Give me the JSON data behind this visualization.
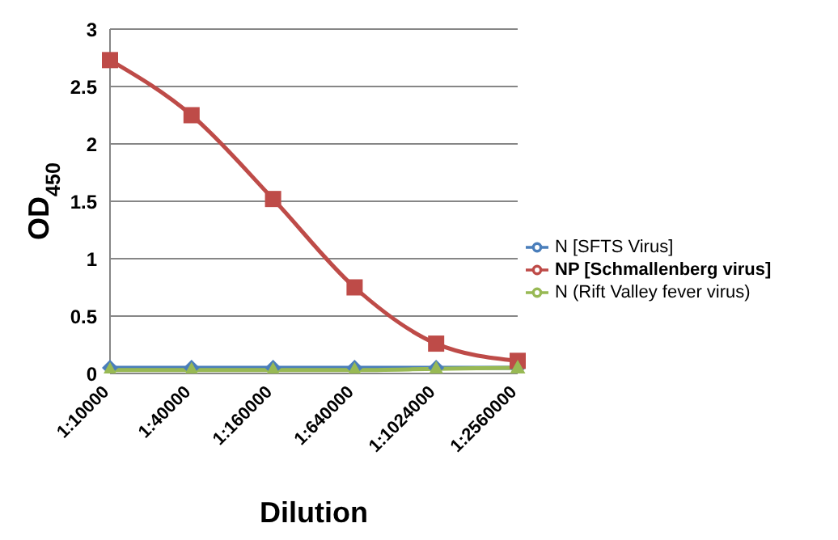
{
  "chart_data": {
    "type": "line",
    "xlabel": "Dilution",
    "ylabel": "OD$_{450}$",
    "categories": [
      "1:10000",
      "1:40000",
      "1:160000",
      "1:640000",
      "1:1024000",
      "1:2560000"
    ],
    "series": [
      {
        "name": "N [SFTS Virus]",
        "color": "#4a7ebb",
        "marker": "diamond",
        "values": [
          0.05,
          0.05,
          0.05,
          0.05,
          0.05,
          0.05
        ]
      },
      {
        "name": "NP [Schmallenberg virus]",
        "color": "#be4b48",
        "marker": "square",
        "values": [
          2.73,
          2.25,
          1.52,
          0.75,
          0.26,
          0.11
        ]
      },
      {
        "name": "N (Rift Valley fever virus)",
        "color": "#98b954",
        "marker": "triangle",
        "values": [
          0.03,
          0.03,
          0.03,
          0.03,
          0.04,
          0.05
        ]
      }
    ],
    "ylim": [
      0,
      3
    ],
    "yticks": [
      0,
      0.5,
      1,
      1.5,
      2,
      2.5,
      3
    ],
    "grid": "y",
    "legend": "right"
  }
}
